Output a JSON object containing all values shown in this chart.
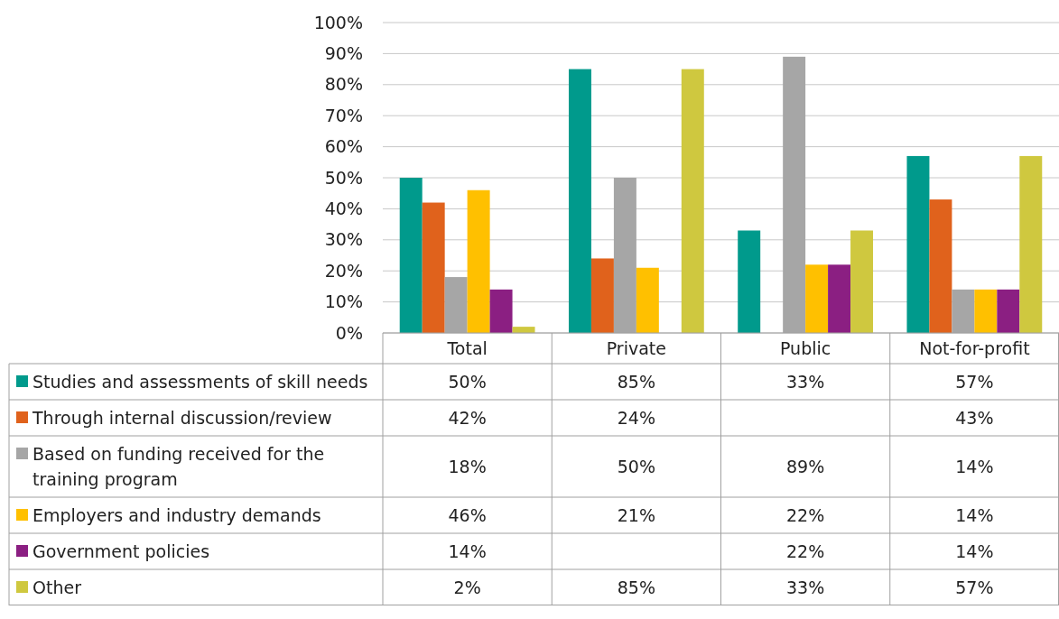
{
  "chart_data": {
    "type": "bar",
    "categories": [
      "Total",
      "Private",
      "Public",
      "Not-for-profit"
    ],
    "ylim": [
      0,
      100
    ],
    "yticks": [
      {
        "value": 0,
        "label": "0%"
      },
      {
        "value": 10,
        "label": "10%"
      },
      {
        "value": 20,
        "label": "20%"
      },
      {
        "value": 30,
        "label": "30%"
      },
      {
        "value": 40,
        "label": "40%"
      },
      {
        "value": 50,
        "label": "50%"
      },
      {
        "value": 60,
        "label": "60%"
      },
      {
        "value": 70,
        "label": "70%"
      },
      {
        "value": 80,
        "label": "80%"
      },
      {
        "value": 90,
        "label": "90%"
      },
      {
        "value": 100,
        "label": "100%"
      }
    ],
    "grid": "y",
    "legend": "bottom",
    "series": [
      {
        "name": "Studies and assessments of skill needs",
        "color": "#009a8c",
        "values": [
          50,
          85,
          33,
          57
        ],
        "value_labels": [
          "50%",
          "85%",
          "33%",
          "57%"
        ]
      },
      {
        "name": "Through internal discussion/review",
        "color": "#e0621c",
        "values": [
          42,
          24,
          null,
          43
        ],
        "value_labels": [
          "42%",
          "24%",
          null,
          "43%"
        ]
      },
      {
        "name": "Based on funding received for the training program",
        "color": "#a6a6a6",
        "values": [
          18,
          50,
          89,
          14
        ],
        "value_labels": [
          "18%",
          "50%",
          "89%",
          "14%"
        ]
      },
      {
        "name": "Employers and industry demands",
        "color": "#ffc000",
        "values": [
          46,
          21,
          22,
          14
        ],
        "value_labels": [
          "46%",
          "21%",
          "22%",
          "14%"
        ]
      },
      {
        "name": "Government policies",
        "color": "#8b1f82",
        "values": [
          14,
          null,
          22,
          14
        ],
        "value_labels": [
          "14%",
          null,
          "22%",
          "14%"
        ]
      },
      {
        "name": "Other",
        "color": "#cfc83f",
        "values": [
          2,
          85,
          33,
          57
        ],
        "value_labels": [
          "2%",
          "85%",
          "33%",
          "57%"
        ]
      }
    ]
  }
}
